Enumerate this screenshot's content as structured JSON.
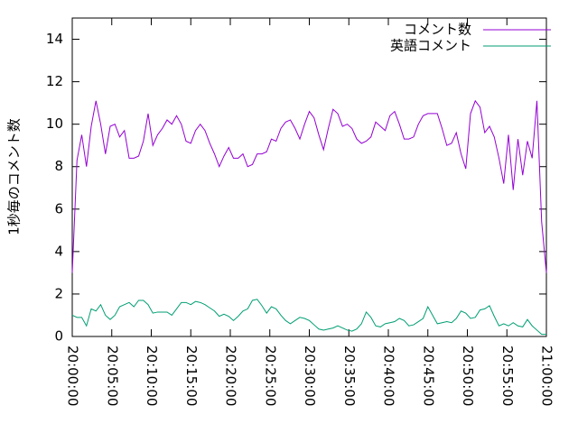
{
  "chart_data": {
    "type": "line",
    "y_label": "1秒毎のコメント数",
    "x": [
      "20:00:00",
      "20:00:36",
      "20:01:12",
      "20:01:48",
      "20:02:24",
      "20:03:00",
      "20:03:36",
      "20:04:12",
      "20:04:48",
      "20:05:24",
      "20:06:00",
      "20:06:36",
      "20:07:12",
      "20:07:48",
      "20:08:24",
      "20:09:00",
      "20:09:36",
      "20:10:12",
      "20:10:48",
      "20:11:24",
      "20:12:00",
      "20:12:36",
      "20:13:12",
      "20:13:48",
      "20:14:24",
      "20:15:00",
      "20:15:36",
      "20:16:12",
      "20:16:48",
      "20:17:24",
      "20:18:00",
      "20:18:36",
      "20:19:12",
      "20:19:48",
      "20:20:24",
      "20:21:00",
      "20:21:36",
      "20:22:12",
      "20:22:48",
      "20:23:24",
      "20:24:00",
      "20:24:36",
      "20:25:12",
      "20:25:48",
      "20:26:24",
      "20:27:00",
      "20:27:36",
      "20:28:12",
      "20:28:48",
      "20:29:24",
      "20:30:00",
      "20:30:36",
      "20:31:12",
      "20:31:48",
      "20:32:24",
      "20:33:00",
      "20:33:36",
      "20:34:12",
      "20:34:48",
      "20:35:24",
      "20:36:00",
      "20:36:36",
      "20:37:12",
      "20:37:48",
      "20:38:24",
      "20:39:00",
      "20:39:36",
      "20:40:12",
      "20:40:48",
      "20:41:24",
      "20:42:00",
      "20:42:36",
      "20:43:12",
      "20:43:48",
      "20:44:24",
      "20:45:00",
      "20:45:36",
      "20:46:12",
      "20:46:48",
      "20:47:24",
      "20:48:00",
      "20:48:36",
      "20:49:12",
      "20:49:48",
      "20:50:24",
      "20:51:00",
      "20:51:36",
      "20:52:12",
      "20:52:48",
      "20:53:24",
      "20:54:00",
      "20:54:36",
      "20:55:12",
      "20:55:48",
      "20:56:24",
      "20:57:00",
      "20:57:36",
      "20:58:12",
      "20:58:48",
      "20:59:24",
      "21:00:00"
    ],
    "series": [
      {
        "name": "コメント数",
        "color": "#9400d3",
        "values": [
          3.0,
          8.3,
          9.5,
          8.0,
          9.9,
          11.1,
          10.0,
          8.6,
          9.9,
          10.0,
          9.4,
          9.7,
          8.4,
          8.4,
          8.5,
          9.2,
          10.5,
          9.0,
          9.5,
          9.8,
          10.2,
          10.0,
          10.4,
          10.0,
          9.2,
          9.1,
          9.7,
          10.0,
          9.7,
          9.1,
          8.6,
          8.0,
          8.5,
          8.9,
          8.4,
          8.4,
          8.6,
          8.0,
          8.1,
          8.6,
          8.6,
          8.7,
          9.3,
          9.2,
          9.8,
          10.1,
          10.2,
          9.8,
          9.3,
          10.0,
          10.6,
          10.3,
          9.5,
          8.8,
          9.8,
          10.7,
          10.5,
          9.9,
          10.0,
          9.8,
          9.3,
          9.1,
          9.2,
          9.4,
          10.1,
          9.9,
          9.7,
          10.4,
          10.6,
          10.0,
          9.3,
          9.3,
          9.4,
          10.0,
          10.4,
          10.5,
          10.5,
          10.5,
          9.8,
          9.0,
          9.1,
          9.6,
          8.6,
          7.9,
          10.5,
          11.1,
          10.8,
          9.6,
          9.9,
          9.4,
          8.4,
          7.2,
          9.5,
          6.9,
          9.3,
          7.6,
          9.2,
          8.4,
          11.1,
          5.4,
          3.0
        ]
      },
      {
        "name": "英語コメント",
        "color": "#009e73",
        "values": [
          1.0,
          0.9,
          0.9,
          0.5,
          1.3,
          1.2,
          1.5,
          1.0,
          0.8,
          1.0,
          1.4,
          1.5,
          1.6,
          1.4,
          1.7,
          1.7,
          1.5,
          1.1,
          1.15,
          1.15,
          1.15,
          1.0,
          1.3,
          1.6,
          1.6,
          1.5,
          1.65,
          1.6,
          1.5,
          1.35,
          1.2,
          0.95,
          1.05,
          0.95,
          0.75,
          0.95,
          1.2,
          1.3,
          1.7,
          1.75,
          1.45,
          1.1,
          1.4,
          1.3,
          1.0,
          0.75,
          0.6,
          0.75,
          0.9,
          0.85,
          0.75,
          0.55,
          0.35,
          0.3,
          0.35,
          0.4,
          0.5,
          0.4,
          0.3,
          0.25,
          0.35,
          0.6,
          1.15,
          0.9,
          0.5,
          0.45,
          0.6,
          0.65,
          0.7,
          0.85,
          0.75,
          0.5,
          0.55,
          0.7,
          0.85,
          1.4,
          1.0,
          0.6,
          0.65,
          0.7,
          0.65,
          0.85,
          1.2,
          1.1,
          0.85,
          0.9,
          1.25,
          1.3,
          1.45,
          0.95,
          0.5,
          0.6,
          0.5,
          0.65,
          0.5,
          0.45,
          0.8,
          0.5,
          0.3,
          0.1,
          0.1
        ]
      }
    ],
    "xlim": [
      "20:00:00",
      "21:00:00"
    ],
    "xticks": [
      "20:00:00",
      "20:05:00",
      "20:10:00",
      "20:15:00",
      "20:20:00",
      "20:25:00",
      "20:30:00",
      "20:35:00",
      "20:40:00",
      "20:45:00",
      "20:50:00",
      "20:55:00",
      "21:00:00"
    ],
    "ylim": [
      0,
      15
    ],
    "yticks": [
      0,
      2,
      4,
      6,
      8,
      10,
      12,
      14
    ],
    "legend": "top-right"
  }
}
